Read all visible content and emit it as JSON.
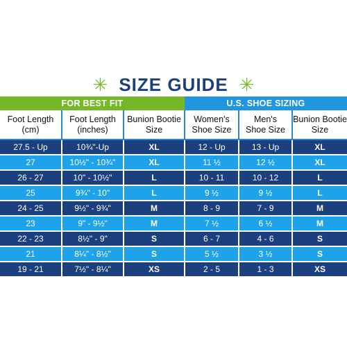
{
  "title": "SIZE GUIDE",
  "group_headers": {
    "best_fit": "FOR BEST FIT",
    "us_sizing": "U.S. SHOE SIZING"
  },
  "columns": [
    [
      "Foot Length",
      "(cm)"
    ],
    [
      "Foot Length",
      "(inches)"
    ],
    [
      "Bunion Bootie",
      "Size"
    ],
    [
      "Women's",
      "Shoe Size"
    ],
    [
      "Men's",
      "Shoe Size"
    ],
    [
      "Bunion Bootie",
      "Size"
    ]
  ],
  "rows": [
    [
      "27.5 - Up",
      "10¾\"-Up",
      "XL",
      "12 - Up",
      "13 - Up",
      "XL"
    ],
    [
      "27",
      "10½\" - 10¾\"",
      "XL",
      "11 ½",
      "12 ½",
      "XL"
    ],
    [
      "26 - 27",
      "10\" - 10½\"",
      "L",
      "10 - 11",
      "10 - 12",
      "L"
    ],
    [
      "25",
      "9¾\" - 10\"",
      "L",
      "9 ½",
      "9 ½",
      "L"
    ],
    [
      "24 - 25",
      "9½\" - 9¾\"",
      "M",
      "8 - 9",
      "7 - 9",
      "M"
    ],
    [
      "23",
      "9\" - 9½\"",
      "M",
      "7 ½",
      "6 ½",
      "M"
    ],
    [
      "22 - 23",
      "8½\" - 9\"",
      "S",
      "6 - 7",
      "4 - 6",
      "S"
    ],
    [
      "21",
      "8¼\" - 8½\"",
      "S",
      "5 ½",
      "3 ½",
      "S"
    ],
    [
      "19 - 21",
      "7½\" - 8¼\"",
      "XS",
      "2 - 5",
      "1 - 3",
      "XS"
    ]
  ],
  "colors": {
    "navy": "#1c3f7e",
    "light_blue": "#1ea2ea",
    "green": "#76b82a",
    "header_blue": "#2196e0"
  }
}
